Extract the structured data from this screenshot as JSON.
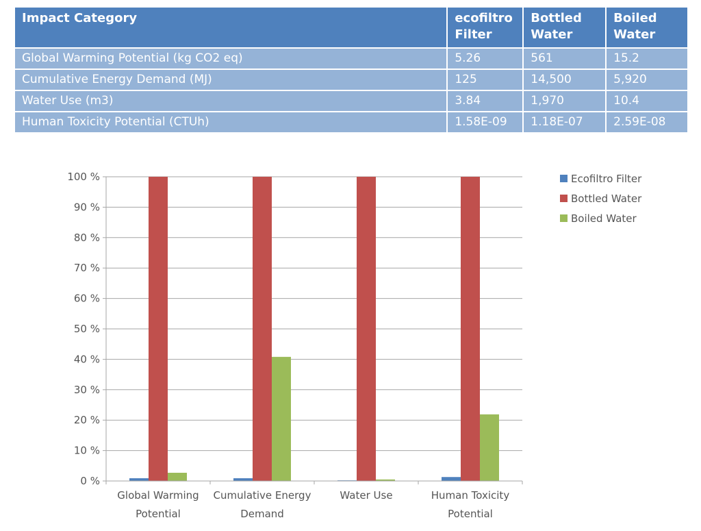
{
  "table": {
    "headers": [
      [
        "Impact Category"
      ],
      [
        "ecofiltro",
        "Filter"
      ],
      [
        "Bottled",
        "Water"
      ],
      [
        "Boiled",
        "Water"
      ]
    ],
    "rows": [
      [
        "Global Warming Potential (kg CO2 eq)",
        "5.26",
        "561",
        "15.2"
      ],
      [
        "Cumulative Energy Demand (MJ)",
        "125",
        "14,500",
        "5,920"
      ],
      [
        "Water Use (m3)",
        "3.84",
        "1,970",
        "10.4"
      ],
      [
        "Human Toxicity Potential (CTUh)",
        "1.58E-09",
        "1.18E-07",
        "2.59E-08"
      ]
    ]
  },
  "colors": {
    "header_bg": "#4f81bd",
    "row_bg": "#95b3d7",
    "ecofiltro": "#4f81bd",
    "bottled": "#c0504d",
    "boiled": "#9bbb59"
  },
  "chart_data": {
    "type": "bar",
    "categories": [
      [
        "Global Warming",
        "Potential"
      ],
      [
        "Cumulative Energy",
        "Demand"
      ],
      [
        "Water Use"
      ],
      [
        "Human Toxicity",
        "Potential"
      ]
    ],
    "series": [
      {
        "name": "Ecofiltro Filter",
        "color": "#4f81bd",
        "values": [
          0.9,
          0.9,
          0.2,
          1.3
        ]
      },
      {
        "name": "Bottled Water",
        "color": "#c0504d",
        "values": [
          100,
          100,
          100,
          100
        ]
      },
      {
        "name": "Boiled Water",
        "color": "#9bbb59",
        "values": [
          2.7,
          40.8,
          0.5,
          21.9
        ]
      }
    ],
    "yticks": [
      "0 %",
      "10 %",
      "20 %",
      "30 %",
      "40 %",
      "50 %",
      "60 %",
      "70 %",
      "80 %",
      "90 %",
      "100 %"
    ],
    "ylim": [
      0,
      100
    ],
    "grid": true,
    "legend": "right"
  }
}
